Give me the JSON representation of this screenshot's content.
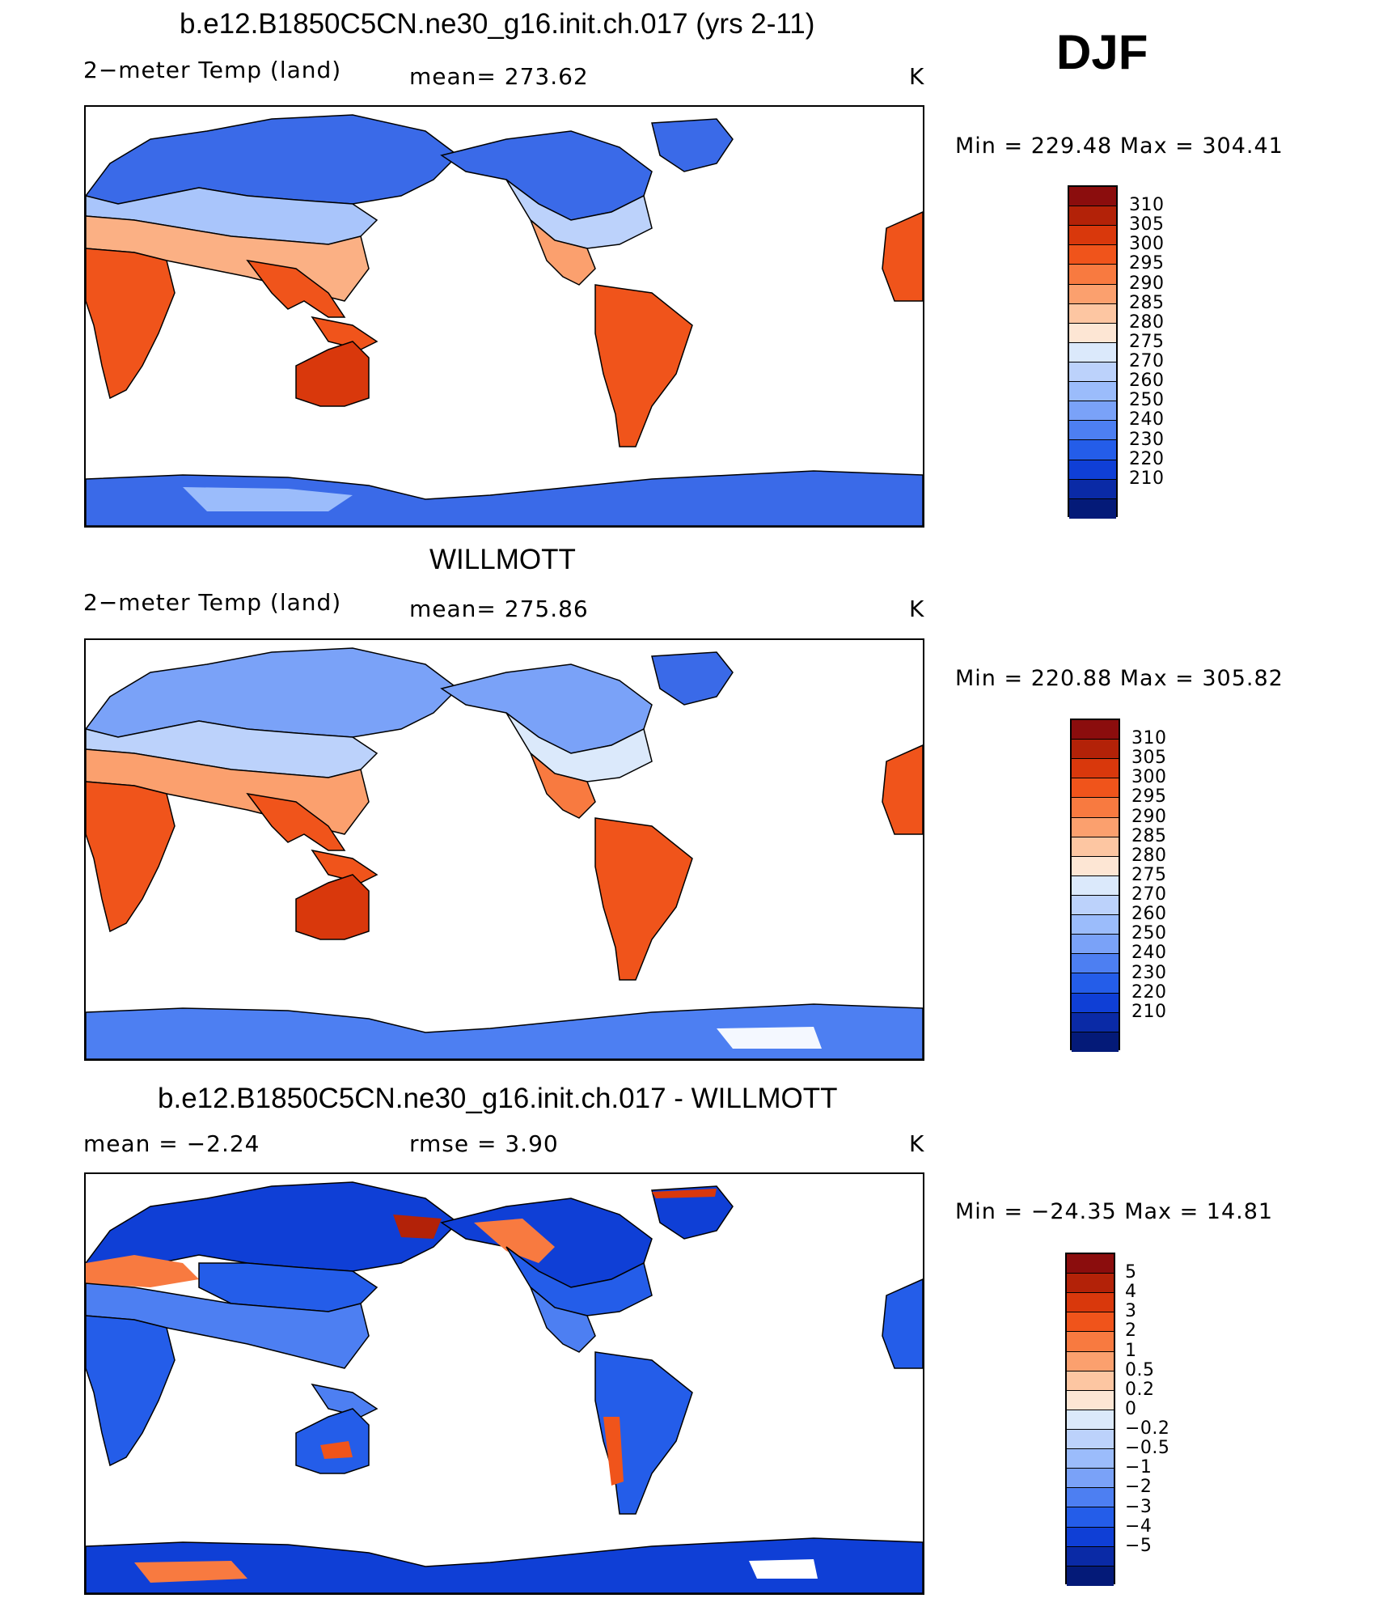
{
  "season": "DJF",
  "panels": [
    {
      "title": "b.e12.B1850C5CN.ne30_g16.init.ch.017 (yrs 2-11)",
      "variable": "2−meter Temp (land)",
      "stat": "mean= 273.62",
      "units": "K",
      "minmax": "Min = 229.48 Max = 304.41",
      "colorbar_labels": [
        "310",
        "305",
        "300",
        "295",
        "290",
        "285",
        "280",
        "275",
        "270",
        "260",
        "250",
        "240",
        "230",
        "220",
        "210"
      ],
      "colorbar_colors": [
        "#8b0d0d",
        "#b32208",
        "#d9380c",
        "#f0541b",
        "#f87a40",
        "#fba06e",
        "#fdc6a2",
        "#fde6d4",
        "#dbe9fb",
        "#bcd2fb",
        "#9bbcfb",
        "#7aa2f8",
        "#4d7ff2",
        "#245de9",
        "#0f3fd6",
        "#0a2aa6",
        "#041a78"
      ]
    },
    {
      "title": "WILLMOTT",
      "variable": "2−meter Temp (land)",
      "stat": "mean= 275.86",
      "units": "K",
      "minmax": "Min = 220.88 Max = 305.82",
      "colorbar_labels": [
        "310",
        "305",
        "300",
        "295",
        "290",
        "285",
        "280",
        "275",
        "270",
        "260",
        "250",
        "240",
        "230",
        "220",
        "210"
      ],
      "colorbar_colors": [
        "#8b0d0d",
        "#b32208",
        "#d9380c",
        "#f0541b",
        "#f87a40",
        "#fba06e",
        "#fdc6a2",
        "#fde6d4",
        "#dbe9fb",
        "#bcd2fb",
        "#9bbcfb",
        "#7aa2f8",
        "#4d7ff2",
        "#245de9",
        "#0f3fd6",
        "#0a2aa6",
        "#041a78"
      ]
    },
    {
      "title": "b.e12.B1850C5CN.ne30_g16.init.ch.017 - WILLMOTT",
      "variable": "mean =   −2.24",
      "stat": "rmse =    3.90",
      "units": "K",
      "minmax": "Min = −24.35 Max =   14.81",
      "colorbar_labels": [
        "5",
        "4",
        "3",
        "2",
        "1",
        "0.5",
        "0.2",
        "0",
        "−0.2",
        "−0.5",
        "−1",
        "−2",
        "−3",
        "−4",
        "−5"
      ],
      "colorbar_colors": [
        "#8b0d0d",
        "#b32208",
        "#d9380c",
        "#f0541b",
        "#f87a40",
        "#fba06e",
        "#fdc6a2",
        "#fde6d4",
        "#dbe9fb",
        "#bcd2fb",
        "#9bbcfb",
        "#7aa2f8",
        "#4d7ff2",
        "#245de9",
        "#0f3fd6",
        "#0a2aa6",
        "#041a78"
      ]
    }
  ]
}
